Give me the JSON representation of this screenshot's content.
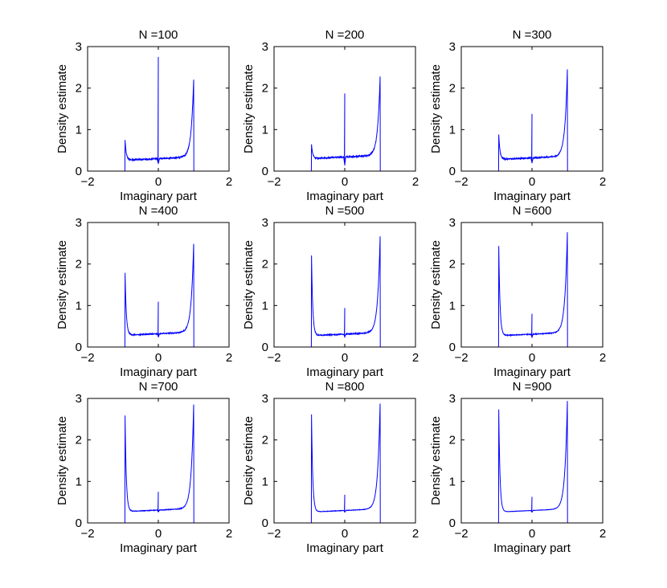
{
  "colors": {
    "line": "#0000ff",
    "axes": "#000000",
    "background": "#ffffff"
  },
  "chart_data": [
    {
      "type": "line",
      "title": "N =100",
      "xlabel": "Imaginary part",
      "ylabel": "Density estimate",
      "xlim": [
        -2,
        2
      ],
      "ylim": [
        0,
        3
      ],
      "xticks": [
        "-2",
        "0",
        "2"
      ],
      "yticks": [
        "0",
        "1",
        "2",
        "3"
      ],
      "peaks": {
        "left_edge": 0.78,
        "center_spike": 2.75,
        "right_edge": 2.18,
        "center_base": 0.3,
        "center_dip": 0.18
      }
    },
    {
      "type": "line",
      "title": "N =200",
      "xlabel": "Imaginary part",
      "ylabel": "Density estimate",
      "xlim": [
        -2,
        2
      ],
      "ylim": [
        0,
        3
      ],
      "xticks": [
        "-2",
        "0",
        "2"
      ],
      "yticks": [
        "0",
        "1",
        "2",
        "3"
      ],
      "peaks": {
        "left_edge": 0.68,
        "center_spike": 1.87,
        "right_edge": 2.24,
        "center_base": 0.34,
        "center_dip": 0.14
      }
    },
    {
      "type": "line",
      "title": "N =300",
      "xlabel": "Imaginary part",
      "ylabel": "Density estimate",
      "xlim": [
        -2,
        2
      ],
      "ylim": [
        0,
        3
      ],
      "xticks": [
        "-2",
        "0",
        "2"
      ],
      "yticks": [
        "0",
        "1",
        "2",
        "3"
      ],
      "peaks": {
        "left_edge": 0.92,
        "center_spike": 1.38,
        "right_edge": 2.4,
        "center_base": 0.32,
        "center_dip": 0.2
      }
    },
    {
      "type": "line",
      "title": "N =400",
      "xlabel": "Imaginary part",
      "ylabel": "Density estimate",
      "xlim": [
        -2,
        2
      ],
      "ylim": [
        0,
        3
      ],
      "xticks": [
        "-2",
        "0",
        "2"
      ],
      "yticks": [
        "0",
        "1",
        "2",
        "3"
      ],
      "peaks": {
        "left_edge": 1.83,
        "center_spike": 1.09,
        "right_edge": 2.45,
        "center_base": 0.32,
        "center_dip": 0.24
      }
    },
    {
      "type": "line",
      "title": "N =500",
      "xlabel": "Imaginary part",
      "ylabel": "Density estimate",
      "xlim": [
        -2,
        2
      ],
      "ylim": [
        0,
        3
      ],
      "xticks": [
        "-2",
        "0",
        "2"
      ],
      "yticks": [
        "0",
        "1",
        "2",
        "3"
      ],
      "peaks": {
        "left_edge": 2.25,
        "center_spike": 0.94,
        "right_edge": 2.62,
        "center_base": 0.31,
        "center_dip": 0.24
      }
    },
    {
      "type": "line",
      "title": "N =600",
      "xlabel": "Imaginary part",
      "ylabel": "Density estimate",
      "xlim": [
        -2,
        2
      ],
      "ylim": [
        0,
        3
      ],
      "xticks": [
        "-2",
        "0",
        "2"
      ],
      "yticks": [
        "0",
        "1",
        "2",
        "3"
      ],
      "peaks": {
        "left_edge": 2.48,
        "center_spike": 0.8,
        "right_edge": 2.73,
        "center_base": 0.31,
        "center_dip": 0.24
      }
    },
    {
      "type": "line",
      "title": "N =700",
      "xlabel": "Imaginary part",
      "ylabel": "Density estimate",
      "xlim": [
        -2,
        2
      ],
      "ylim": [
        0,
        3
      ],
      "xticks": [
        "-2",
        "0",
        "2"
      ],
      "yticks": [
        "0",
        "1",
        "2",
        "3"
      ],
      "peaks": {
        "left_edge": 2.62,
        "center_spike": 0.75,
        "right_edge": 2.81,
        "center_base": 0.31,
        "center_dip": 0.26
      }
    },
    {
      "type": "line",
      "title": "N =800",
      "xlabel": "Imaginary part",
      "ylabel": "Density estimate",
      "xlim": [
        -2,
        2
      ],
      "ylim": [
        0,
        3
      ],
      "xticks": [
        "-2",
        "0",
        "2"
      ],
      "yticks": [
        "0",
        "1",
        "2",
        "3"
      ],
      "peaks": {
        "left_edge": 2.65,
        "center_spike": 0.68,
        "right_edge": 2.84,
        "center_base": 0.3,
        "center_dip": 0.26
      }
    },
    {
      "type": "line",
      "title": "N =900",
      "xlabel": "Imaginary part",
      "ylabel": "Density estimate",
      "xlim": [
        -2,
        2
      ],
      "ylim": [
        0,
        3
      ],
      "xticks": [
        "-2",
        "0",
        "2"
      ],
      "yticks": [
        "0",
        "1",
        "2",
        "3"
      ],
      "peaks": {
        "left_edge": 2.77,
        "center_spike": 0.63,
        "right_edge": 2.9,
        "center_base": 0.3,
        "center_dip": 0.26
      }
    }
  ]
}
